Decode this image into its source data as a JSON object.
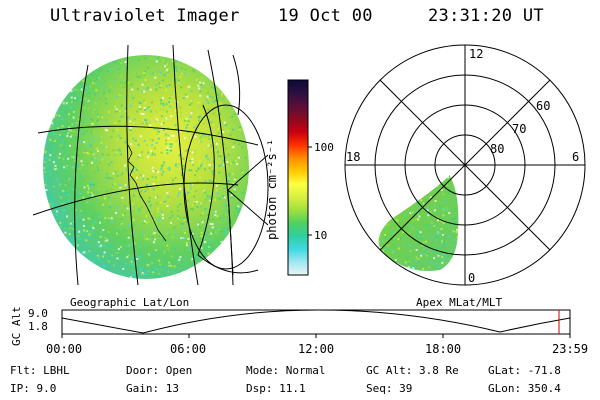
{
  "header": {
    "instrument": "Ultraviolet Imager",
    "date": "19 Oct 00",
    "time": "23:31:20 UT"
  },
  "colorbar": {
    "label": "photon cm⁻²s⁻¹",
    "ticks": [
      "100",
      "10"
    ],
    "gradient_colors": [
      "#0a0a3a",
      "#2b1040",
      "#5a0e3a",
      "#8b0a20",
      "#c80010",
      "#ff3000",
      "#ff8c00",
      "#ffc800",
      "#ffff40",
      "#d8f040",
      "#a0e040",
      "#50d060",
      "#30d0a0",
      "#40d8e0",
      "#a0e8f0",
      "#e8f4f8"
    ]
  },
  "panels": {
    "left_label": "Geographic Lat/Lon",
    "right_label": "Apex MLat/MLT",
    "mlt_labels": {
      "top": "12",
      "left": "18",
      "right": "6",
      "bottom": "0"
    },
    "mlat_labels": [
      "60",
      "70",
      "80"
    ]
  },
  "timeline": {
    "ylabel": "GC Alt",
    "ytick_top": "9.0",
    "ytick_bottom": "1.8",
    "xticks": [
      "00:00",
      "06:00",
      "12:00",
      "18:00",
      "23:59"
    ],
    "marker_color": "#cc0000"
  },
  "info": {
    "flt_label": "Flt:",
    "flt_value": "LBHL",
    "ip_label": "IP:",
    "ip_value": "9.0",
    "door_label": "Door:",
    "door_value": "Open",
    "gain_label": "Gain:",
    "gain_value": "13",
    "mode_label": "Mode:",
    "mode_value": "Normal",
    "dsp_label": "Dsp:",
    "dsp_value": "11.1",
    "gcalt_label": "GC Alt:",
    "gcalt_value": "3.8 Re",
    "seq_label": "Seq:",
    "seq_value": "39",
    "glat_label": "GLat:",
    "glat_value": "-71.8",
    "glon_label": "GLon:",
    "glon_value": "350.4"
  }
}
